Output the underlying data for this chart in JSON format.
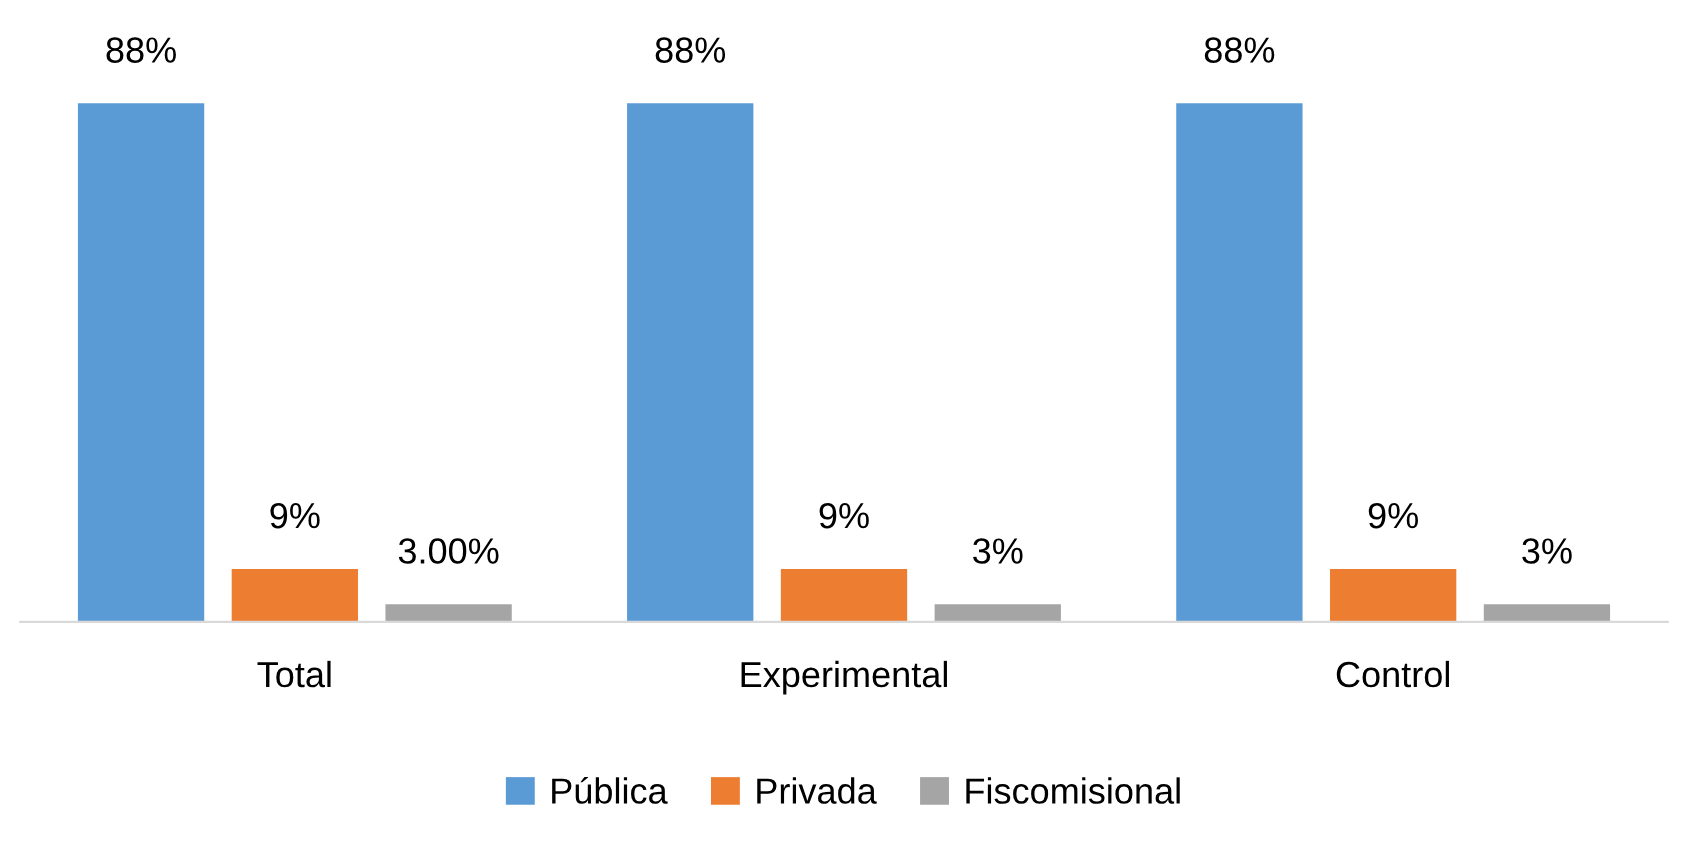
{
  "chart_data": {
    "type": "bar",
    "categories": [
      "Total",
      "Experimental",
      "Control"
    ],
    "series": [
      {
        "name": "Pública",
        "color": "#5b9bd5",
        "values": [
          88,
          88,
          88
        ],
        "value_labels": [
          "88%",
          "88%",
          "88%"
        ]
      },
      {
        "name": "Privada",
        "color": "#ed7d31",
        "values": [
          9,
          9,
          9
        ],
        "value_labels": [
          "9%",
          "9%",
          "9%"
        ]
      },
      {
        "name": "Fiscomisional",
        "color": "#a5a5a5",
        "values": [
          3,
          3,
          3
        ],
        "value_labels": [
          "3.00%",
          "3%",
          "3%"
        ]
      }
    ],
    "grid": false,
    "legend": "bottom"
  }
}
